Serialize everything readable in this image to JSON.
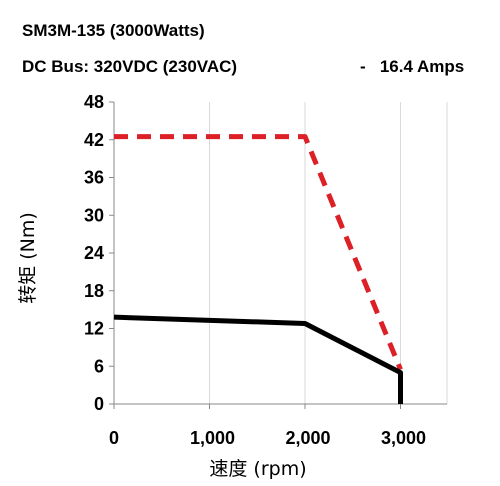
{
  "header": {
    "line1": "SM3M-135 (3000Watts)",
    "line2": "DC Bus: 320VDC (230VAC)",
    "line2_right": "-   16.4 Amps"
  },
  "chart_data": {
    "type": "line",
    "xlabel": "速度 (rpm)",
    "ylabel": "转矩 (Nm)",
    "xlim": [
      0,
      3000
    ],
    "ylim": [
      0,
      48
    ],
    "xticks": [
      0,
      1000,
      2000,
      3000
    ],
    "xtick_labels": [
      "0",
      "1,000",
      "2,000",
      "3,000"
    ],
    "yticks": [
      0,
      6,
      12,
      18,
      24,
      30,
      36,
      42,
      48
    ],
    "ytick_labels": [
      "0",
      "6",
      "12",
      "18",
      "24",
      "30",
      "36",
      "42",
      "48"
    ],
    "grid": "vertical",
    "series": [
      {
        "color": "#dd1f26",
        "style": "dashed",
        "x": [
          0,
          2000,
          3000
        ],
        "y": [
          42.5,
          42.5,
          5.5
        ]
      },
      {
        "color": "#000000",
        "style": "solid",
        "x": [
          0,
          2000,
          3000,
          3000
        ],
        "y": [
          13.8,
          12.8,
          5.0,
          0
        ]
      }
    ]
  }
}
